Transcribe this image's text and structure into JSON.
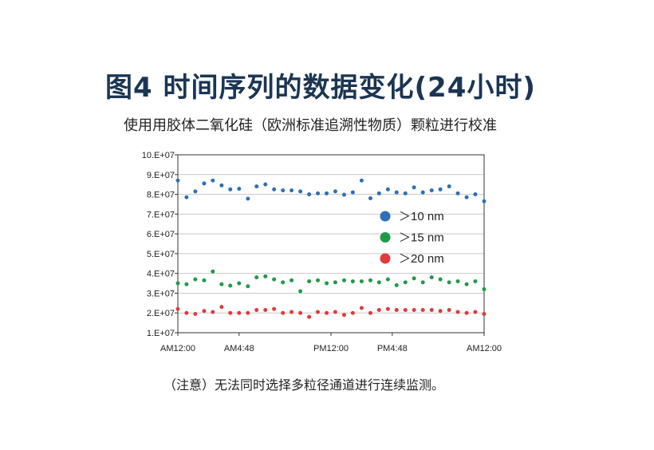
{
  "page": {
    "title": "图4  时间序列的数据变化(24小时)",
    "subtitle": "使用用胶体二氧化硅（欧洲标准追溯性物质）颗粒进行校准",
    "note": "（注意）无法同时选择多粒径通道进行连续监测。"
  },
  "chart_data": {
    "type": "scatter",
    "title": "",
    "xlabel": "",
    "ylabel": "",
    "ylim": [
      10000000,
      100000000
    ],
    "yticks": [
      {
        "value": 10000000,
        "label": "1.E+07"
      },
      {
        "value": 20000000,
        "label": "2.E+07"
      },
      {
        "value": 30000000,
        "label": "3.E+07"
      },
      {
        "value": 40000000,
        "label": "4.E+07"
      },
      {
        "value": 50000000,
        "label": "5.E+07"
      },
      {
        "value": 60000000,
        "label": "6.E+07"
      },
      {
        "value": 70000000,
        "label": "7.E+07"
      },
      {
        "value": 80000000,
        "label": "8.E+07"
      },
      {
        "value": 90000000,
        "label": "9.E+07"
      },
      {
        "value": 100000000,
        "label": "10.E+07"
      }
    ],
    "xlim": [
      0,
      24
    ],
    "xticks": [
      {
        "value": 0,
        "label": "AM12:00"
      },
      {
        "value": 4.8,
        "label": "AM4:48"
      },
      {
        "value": 12,
        "label": "PM12:00"
      },
      {
        "value": 16.8,
        "label": "PM4:48"
      },
      {
        "value": 24,
        "label": "AM12:00"
      }
    ],
    "grid": true,
    "legend_position": "right",
    "series": [
      {
        "name": "＞10 nm",
        "color": "#2f6fb5",
        "x": [
          0,
          0.68,
          1.37,
          2.06,
          2.74,
          3.43,
          4.11,
          4.8,
          5.49,
          6.17,
          6.86,
          7.54,
          8.23,
          8.91,
          9.6,
          10.29,
          10.97,
          11.66,
          12.34,
          13.03,
          13.71,
          14.4,
          15.09,
          15.77,
          16.46,
          17.14,
          17.83,
          18.51,
          19.2,
          19.89,
          20.57,
          21.26,
          21.94,
          22.63,
          23.31,
          24
        ],
        "y": [
          87000000,
          78500000,
          81500000,
          85500000,
          87000000,
          84500000,
          82500000,
          82800000,
          77800000,
          84000000,
          85000000,
          82500000,
          82000000,
          82000000,
          81500000,
          80000000,
          80500000,
          80500000,
          81500000,
          79800000,
          81000000,
          87000000,
          78000000,
          80500000,
          82500000,
          81000000,
          80500000,
          83500000,
          81000000,
          82000000,
          82500000,
          84000000,
          80500000,
          78500000,
          80000000,
          76500000
        ]
      },
      {
        "name": "＞15 nm",
        "color": "#1f9a48",
        "x": [
          0,
          0.68,
          1.37,
          2.06,
          2.74,
          3.43,
          4.11,
          4.8,
          5.49,
          6.17,
          6.86,
          7.54,
          8.23,
          8.91,
          9.6,
          10.29,
          10.97,
          11.66,
          12.34,
          13.03,
          13.71,
          14.4,
          15.09,
          15.77,
          16.46,
          17.14,
          17.83,
          18.51,
          19.2,
          19.89,
          20.57,
          21.26,
          21.94,
          22.63,
          23.31,
          24
        ],
        "y": [
          35000000,
          34500000,
          37000000,
          36500000,
          41000000,
          34500000,
          33800000,
          35000000,
          33500000,
          38000000,
          38500000,
          37000000,
          35500000,
          36500000,
          31000000,
          36000000,
          36500000,
          35000000,
          35500000,
          36500000,
          36000000,
          36000000,
          36500000,
          35500000,
          37000000,
          34000000,
          35500000,
          37500000,
          35500000,
          38000000,
          37000000,
          35500000,
          36000000,
          34500000,
          36000000,
          32000000
        ]
      },
      {
        "name": "＞20 nm",
        "color": "#e03a3c",
        "x": [
          0,
          0.68,
          1.37,
          2.06,
          2.74,
          3.43,
          4.11,
          4.8,
          5.49,
          6.17,
          6.86,
          7.54,
          8.23,
          8.91,
          9.6,
          10.29,
          10.97,
          11.66,
          12.34,
          13.03,
          13.71,
          14.4,
          15.09,
          15.77,
          16.46,
          17.14,
          17.83,
          18.51,
          19.2,
          19.89,
          20.57,
          21.26,
          21.94,
          22.63,
          23.31,
          24
        ],
        "y": [
          22000000,
          20000000,
          19500000,
          21000000,
          20500000,
          23000000,
          20000000,
          20000000,
          20000000,
          21500000,
          21500000,
          22000000,
          20000000,
          20500000,
          20000000,
          18000000,
          20500000,
          20000000,
          20500000,
          19000000,
          20000000,
          22500000,
          20000000,
          21500000,
          22000000,
          21500000,
          21500000,
          21500000,
          21500000,
          21500000,
          21000000,
          21500000,
          20500000,
          20000000,
          20500000,
          19500000
        ]
      }
    ]
  }
}
